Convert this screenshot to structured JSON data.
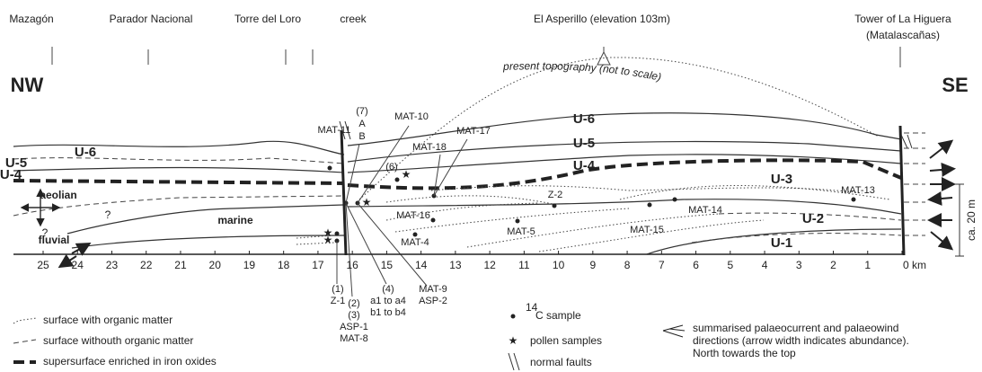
{
  "locations": [
    "Mazagón",
    "Parador Nacional",
    "Torre del Loro",
    "creek",
    "El Asperillo (elevation 103m)",
    "Tower of La Higuera",
    "(Matalascañas)"
  ],
  "orientation": {
    "left": "NW",
    "right": "SE"
  },
  "topography_label": "present topography (not to scale)",
  "units": {
    "left": [
      "U-6",
      "U-5",
      "U-4"
    ],
    "right": [
      "U-6",
      "U-5",
      "U-4",
      "U-3",
      "U-2",
      "U-1"
    ]
  },
  "facies": [
    "aeolian",
    "marine",
    "fluvial",
    "?",
    "?"
  ],
  "samples": [
    "MAT-11",
    "(7)",
    "A",
    "B",
    "MAT-10",
    "MAT-18",
    "MAT-17",
    "(6)",
    "Z-2",
    "MAT-13",
    "MAT-16",
    "MAT-15",
    "MAT-14",
    "MAT-5",
    "MAT-4"
  ],
  "km_axis": {
    "ticks": [
      "25",
      "24",
      "23",
      "22",
      "21",
      "20",
      "19",
      "18",
      "17",
      "16",
      "15",
      "14",
      "13",
      "12",
      "11",
      "10",
      "9",
      "8",
      "7",
      "6",
      "5",
      "4",
      "3",
      "2",
      "1"
    ],
    "end_label": "0 km"
  },
  "scale_label": "ca. 20 m",
  "lower_samples": [
    "(1)",
    "Z-1",
    "(2)",
    "(3)",
    "ASP-1",
    "MAT-8",
    "(4)",
    "a1 to a4",
    "b1 to b4",
    "MAT-9",
    "ASP-2"
  ],
  "legend": [
    "surface with organic matter",
    "surface withouth organic matter",
    "supersurface enriched in iron oxides",
    "14",
    "C sample",
    "pollen samples",
    "normal faults",
    "summarised palaeocurrent and palaeowind",
    "directions (arrow width indicates abundance).",
    "North towards the top"
  ]
}
